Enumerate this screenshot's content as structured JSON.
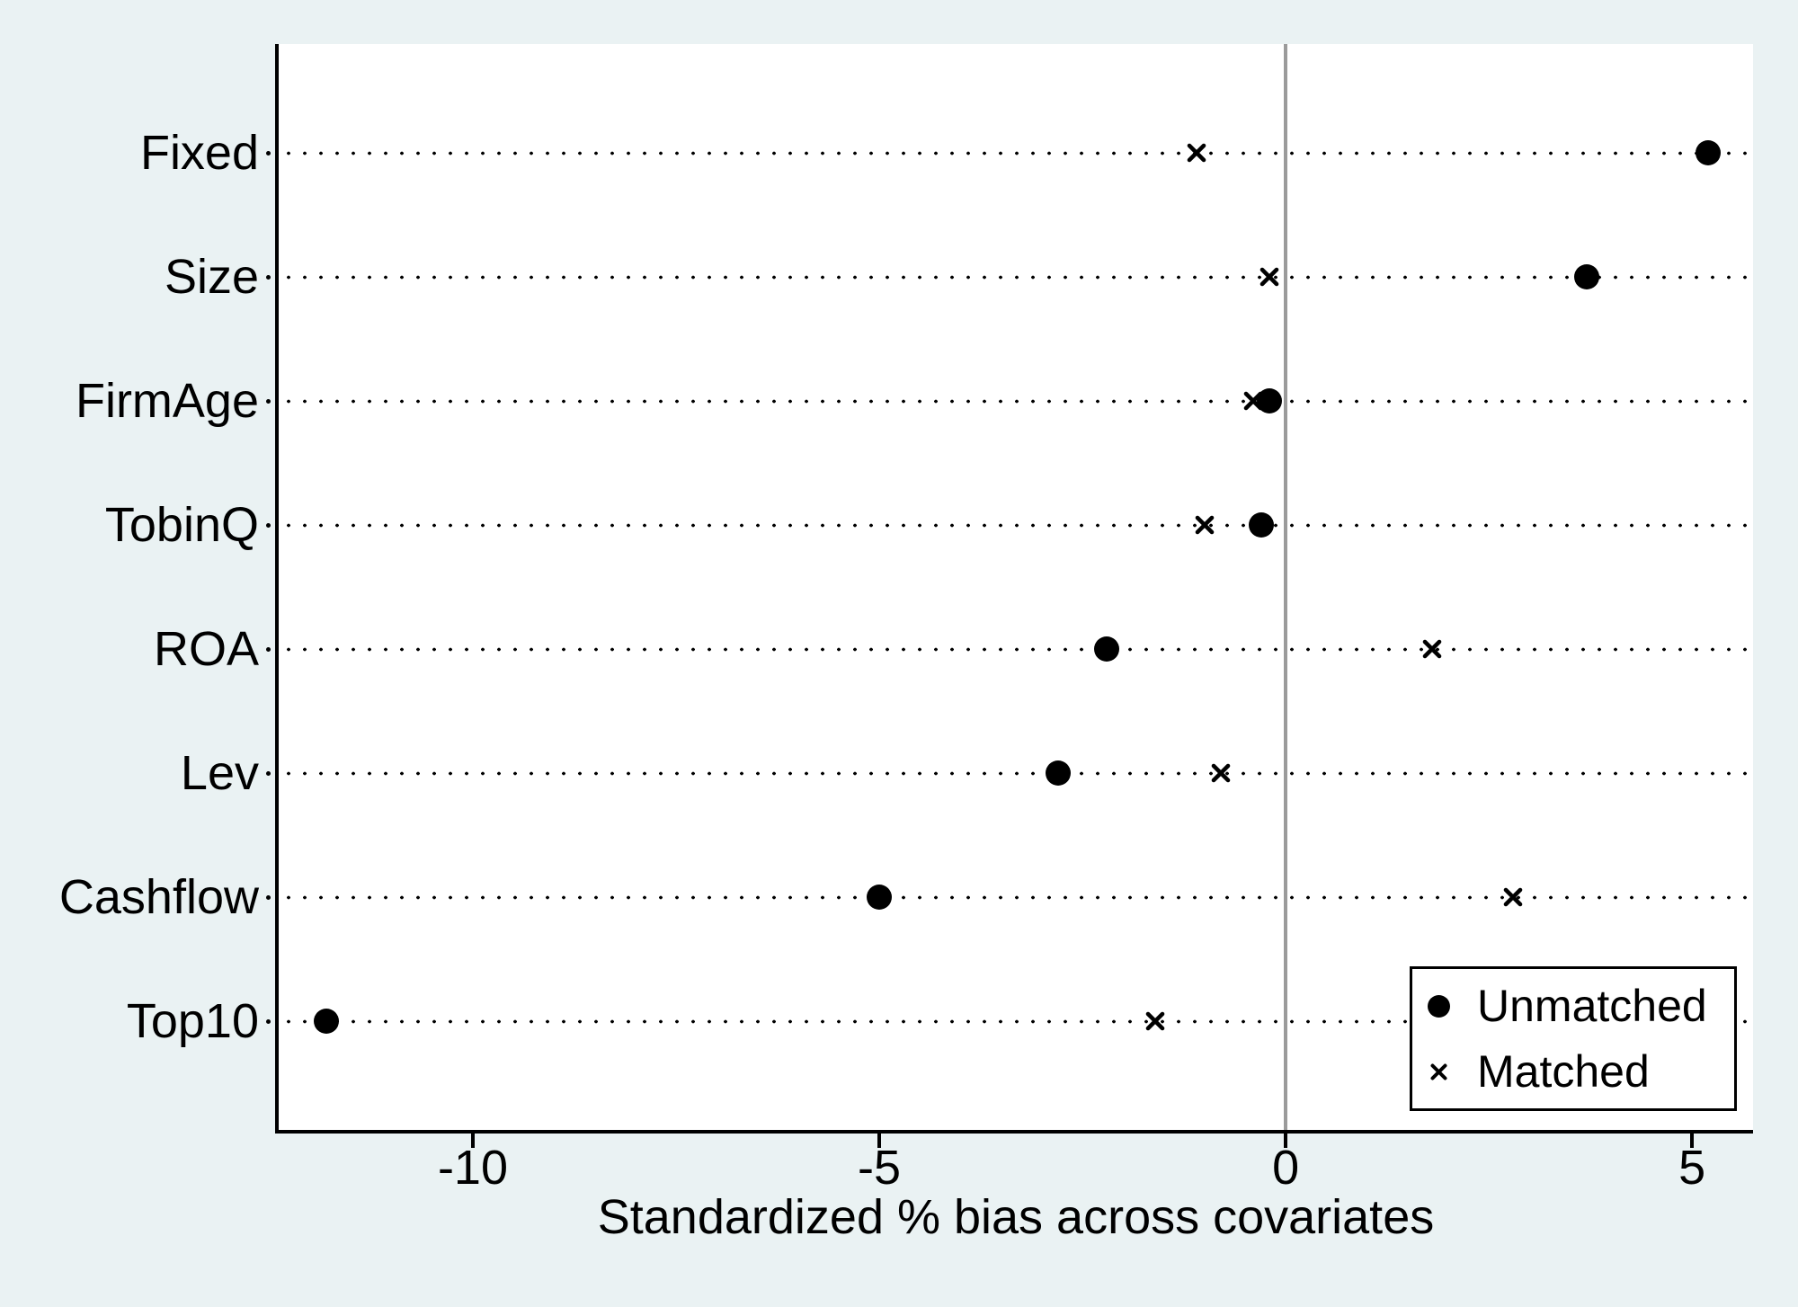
{
  "chart_data": {
    "type": "scatter",
    "title": "",
    "xlabel": "Standardized % bias across covariates",
    "categories": [
      "Fixed",
      "Size",
      "FirmAge",
      "TobinQ",
      "ROA",
      "Lev",
      "Cashflow",
      "Top10"
    ],
    "series": [
      {
        "name": "Unmatched",
        "marker": "circle",
        "values": [
          5.2,
          3.7,
          -0.2,
          -0.3,
          -2.2,
          -2.8,
          -5.0,
          -11.8
        ]
      },
      {
        "name": "Matched",
        "marker": "x",
        "values": [
          -1.1,
          -0.2,
          -0.4,
          -1.0,
          1.8,
          -0.8,
          2.8,
          -1.6
        ]
      }
    ],
    "x_ticks": [
      -10,
      -5,
      0,
      5
    ],
    "x_tick_labels": [
      "-10",
      "-5",
      "0",
      "5"
    ],
    "xlim": [
      -12.4,
      5.75
    ],
    "zero_line_x": 0,
    "grid": "dotted-horizontal-rows",
    "legend_position": "bottom-right",
    "legend_labels": [
      "Unmatched",
      "Matched"
    ],
    "colors": {
      "background": "#EAF2F3",
      "plot_bg": "#FFFFFF",
      "marker": "#000000",
      "dotted_line": "#000000",
      "zero_line": "#9B9B9B",
      "axis": "#000000"
    }
  }
}
